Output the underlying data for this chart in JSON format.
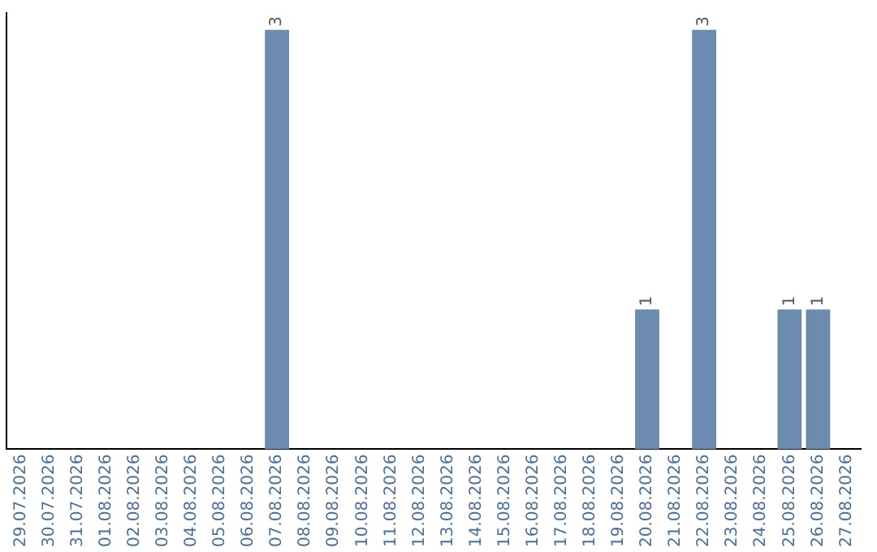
{
  "chart_data": {
    "type": "bar",
    "categories": [
      "29.07.2026",
      "30.07.2026",
      "31.07.2026",
      "01.08.2026",
      "02.08.2026",
      "03.08.2026",
      "04.08.2026",
      "05.08.2026",
      "06.08.2026",
      "07.08.2026",
      "08.08.2026",
      "09.08.2026",
      "10.08.2026",
      "11.08.2026",
      "12.08.2026",
      "13.08.2026",
      "14.08.2026",
      "15.08.2026",
      "16.08.2026",
      "17.08.2026",
      "18.08.2026",
      "19.08.2026",
      "20.08.2026",
      "21.08.2026",
      "22.08.2026",
      "23.08.2026",
      "24.08.2026",
      "25.08.2026",
      "26.08.2026",
      "27.08.2026"
    ],
    "values": [
      0,
      0,
      0,
      0,
      0,
      0,
      0,
      0,
      0,
      3,
      0,
      0,
      0,
      0,
      0,
      0,
      0,
      0,
      0,
      0,
      0,
      0,
      1,
      0,
      3,
      0,
      0,
      1,
      1,
      0
    ],
    "value_labels": [
      null,
      null,
      null,
      null,
      null,
      null,
      null,
      null,
      null,
      "3",
      null,
      null,
      null,
      null,
      null,
      null,
      null,
      null,
      null,
      null,
      null,
      null,
      "1",
      null,
      "3",
      null,
      null,
      "1",
      "1",
      null
    ],
    "color": "#6b8cae",
    "ylim": [
      0,
      3.12
    ],
    "tick_labels": "x",
    "grid": false,
    "legend": false
  }
}
